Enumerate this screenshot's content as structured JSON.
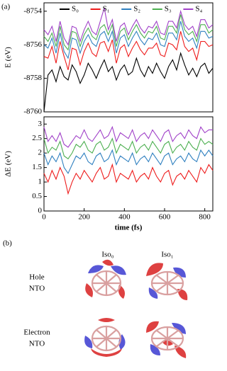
{
  "panel_a_label": "(a)",
  "chart_data": [
    {
      "type": "line",
      "ylabel": "E (eV)",
      "xlim": [
        0,
        840
      ],
      "ylim": [
        -8760,
        -8753.5
      ],
      "yticks": [
        -8760,
        -8758,
        -8756,
        -8754
      ],
      "legend": "top",
      "x": [
        0,
        20,
        40,
        60,
        80,
        100,
        120,
        140,
        160,
        180,
        200,
        220,
        240,
        260,
        280,
        300,
        320,
        340,
        360,
        380,
        400,
        420,
        440,
        460,
        480,
        500,
        520,
        540,
        560,
        580,
        600,
        620,
        640,
        660,
        680,
        700,
        720,
        740,
        760,
        780,
        800,
        820,
        840
      ],
      "series": [
        {
          "name": "S₀",
          "color": "#000000",
          "values": [
            -8760,
            -8757.8,
            -8757.5,
            -8758.2,
            -8757.3,
            -8757.9,
            -8758.1,
            -8757.2,
            -8757.6,
            -8758.3,
            -8757.8,
            -8757.1,
            -8757.5,
            -8758,
            -8757.4,
            -8756.9,
            -8757.6,
            -8757.3,
            -8758.1,
            -8757.5,
            -8757.2,
            -8757.8,
            -8757.6,
            -8756.8,
            -8757.5,
            -8757.9,
            -8757.3,
            -8757.7,
            -8757.1,
            -8757.6,
            -8758,
            -8757.3,
            -8756.9,
            -8757.5,
            -8756.5,
            -8757.2,
            -8757.8,
            -8757.4,
            -8757.9,
            -8757.3,
            -8757.1,
            -8757.7,
            -8757.4
          ]
        },
        {
          "name": "S₁",
          "color": "#ee1c1c",
          "values": [
            -8756.7,
            -8756.8,
            -8756.1,
            -8757.1,
            -8755.8,
            -8756.7,
            -8757.5,
            -8756.2,
            -8756.3,
            -8757.2,
            -8756.4,
            -8755.9,
            -8756.5,
            -8756.7,
            -8755.9,
            -8755.8,
            -8756.4,
            -8755.7,
            -8757.1,
            -8756.2,
            -8756,
            -8756.7,
            -8756.2,
            -8755.8,
            -8756.3,
            -8756.6,
            -8756.2,
            -8756.2,
            -8755.9,
            -8756.6,
            -8756.7,
            -8755.9,
            -8756,
            -8756.3,
            -8755.2,
            -8756.1,
            -8756.4,
            -8756.2,
            -8756.9,
            -8755.8,
            -8755.8,
            -8756.1,
            -8756
          ]
        },
        {
          "name": "S₂",
          "color": "#2f80c0",
          "values": [
            -8756,
            -8756.2,
            -8755.6,
            -8756.5,
            -8755.3,
            -8756.4,
            -8756.8,
            -8755.6,
            -8755.7,
            -8756.5,
            -8755.8,
            -8755.4,
            -8755.9,
            -8756.1,
            -8755.4,
            -8755.2,
            -8755.8,
            -8755.2,
            -8756.5,
            -8755.6,
            -8755.4,
            -8756.1,
            -8755.6,
            -8755.2,
            -8755.7,
            -8756,
            -8755.6,
            -8755.7,
            -8755.3,
            -8756,
            -8756.1,
            -8755.3,
            -8755.3,
            -8755.7,
            -8754.6,
            -8755.5,
            -8755.8,
            -8755.6,
            -8756.2,
            -8755.2,
            -8755.2,
            -8755.6,
            -8755.5
          ]
        },
        {
          "name": "S₃",
          "color": "#4caf50",
          "values": [
            -8755.5,
            -8755.8,
            -8755.3,
            -8756.1,
            -8754.9,
            -8756,
            -8756.3,
            -8755.2,
            -8755.3,
            -8756.1,
            -8755.4,
            -8755,
            -8755.5,
            -8755.7,
            -8755,
            -8754.8,
            -8755.4,
            -8754.8,
            -8756.1,
            -8755.2,
            -8755,
            -8755.7,
            -8755.2,
            -8754.8,
            -8755.3,
            -8755.6,
            -8755.2,
            -8755.3,
            -8754.9,
            -8755.6,
            -8755.7,
            -8754.9,
            -8754.9,
            -8755.3,
            -8754.2,
            -8755.1,
            -8755.4,
            -8755.2,
            -8755.8,
            -8754.8,
            -8754.8,
            -8755.3,
            -8755.1
          ]
        },
        {
          "name": "S₄",
          "color": "#a040c8",
          "values": [
            -8755.1,
            -8755.4,
            -8754.9,
            -8755.8,
            -8754.6,
            -8755.6,
            -8756,
            -8754.9,
            -8755,
            -8755.8,
            -8755.1,
            -8754.6,
            -8755.2,
            -8755.4,
            -8754.6,
            -8753.8,
            -8755.1,
            -8754.5,
            -8755.8,
            -8754.9,
            -8754.7,
            -8755.4,
            -8754.9,
            -8754.5,
            -8755,
            -8755.3,
            -8754.9,
            -8755,
            -8754.6,
            -8755.3,
            -8755.4,
            -8754.6,
            -8754.6,
            -8755,
            -8754,
            -8754.8,
            -8755.1,
            -8754.9,
            -8755.5,
            -8754.5,
            -8754.5,
            -8755,
            -8754.8
          ]
        }
      ]
    },
    {
      "type": "line",
      "ylabel": "ΔE (eV)",
      "xlabel": "time (fs)",
      "xlim": [
        0,
        840
      ],
      "ylim": [
        0,
        3.25
      ],
      "xticks": [
        0,
        200,
        400,
        600,
        800
      ],
      "yticks": [
        0,
        0.5,
        1,
        1.5,
        2,
        2.5,
        3
      ],
      "x": [
        0,
        20,
        40,
        60,
        80,
        100,
        120,
        140,
        160,
        180,
        200,
        220,
        240,
        260,
        280,
        300,
        320,
        340,
        360,
        380,
        400,
        420,
        440,
        460,
        480,
        500,
        520,
        540,
        560,
        580,
        600,
        620,
        640,
        660,
        680,
        700,
        720,
        740,
        760,
        780,
        800,
        820,
        840
      ],
      "series": [
        {
          "color": "#ee1c1c",
          "values": [
            1.3,
            1.0,
            1.4,
            1.1,
            1.5,
            1.2,
            0.6,
            1.0,
            1.3,
            1.1,
            1.4,
            1.2,
            1.0,
            1.3,
            1.5,
            1.1,
            1.2,
            1.6,
            1.0,
            1.3,
            1.2,
            1.1,
            1.4,
            1.0,
            1.2,
            1.3,
            1.1,
            1.5,
            1.2,
            1.0,
            1.3,
            1.4,
            0.9,
            1.2,
            1.3,
            1.1,
            1.4,
            1.2,
            1.0,
            1.5,
            1.3,
            1.6,
            1.4
          ]
        },
        {
          "color": "#2f80c0",
          "values": [
            2.0,
            1.6,
            1.9,
            1.7,
            2.0,
            1.5,
            1.3,
            1.6,
            1.9,
            1.8,
            2.0,
            1.7,
            1.6,
            1.9,
            2.0,
            1.7,
            1.8,
            2.1,
            1.6,
            1.9,
            1.8,
            1.7,
            2.0,
            1.6,
            1.8,
            1.9,
            1.7,
            2.0,
            1.8,
            1.6,
            1.9,
            2.0,
            1.6,
            1.8,
            1.9,
            1.7,
            2.0,
            1.8,
            1.7,
            2.1,
            1.9,
            2.1,
            1.9
          ]
        },
        {
          "color": "#4caf50",
          "values": [
            2.5,
            2.0,
            2.2,
            2.1,
            2.4,
            1.9,
            1.8,
            2.0,
            2.3,
            2.2,
            2.4,
            2.1,
            2.0,
            2.3,
            2.4,
            2.1,
            2.2,
            2.5,
            2.0,
            2.3,
            2.2,
            2.1,
            2.4,
            2.0,
            2.2,
            2.3,
            2.1,
            2.4,
            2.2,
            2.0,
            2.3,
            2.4,
            2.0,
            2.2,
            2.3,
            2.1,
            2.4,
            2.2,
            2.1,
            2.5,
            2.3,
            2.4,
            2.3
          ]
        },
        {
          "color": "#a040c8",
          "values": [
            2.9,
            2.4,
            2.6,
            2.4,
            2.7,
            2.3,
            2.2,
            2.4,
            2.6,
            2.5,
            2.8,
            2.5,
            2.4,
            2.6,
            2.8,
            2.5,
            2.6,
            2.9,
            2.4,
            2.7,
            2.6,
            2.5,
            2.8,
            2.4,
            2.6,
            2.7,
            2.5,
            2.8,
            2.6,
            2.4,
            2.7,
            2.8,
            2.4,
            2.6,
            2.7,
            2.5,
            2.8,
            2.6,
            2.5,
            2.9,
            2.7,
            2.8,
            2.8
          ]
        }
      ]
    }
  ],
  "panel_b": {
    "label": "(b)",
    "columns": [
      "Iso₀",
      "Iso₁"
    ],
    "rows": [
      {
        "lines": [
          "Hole",
          "NTO"
        ]
      },
      {
        "lines": [
          "Electron",
          "NTO"
        ]
      }
    ]
  }
}
